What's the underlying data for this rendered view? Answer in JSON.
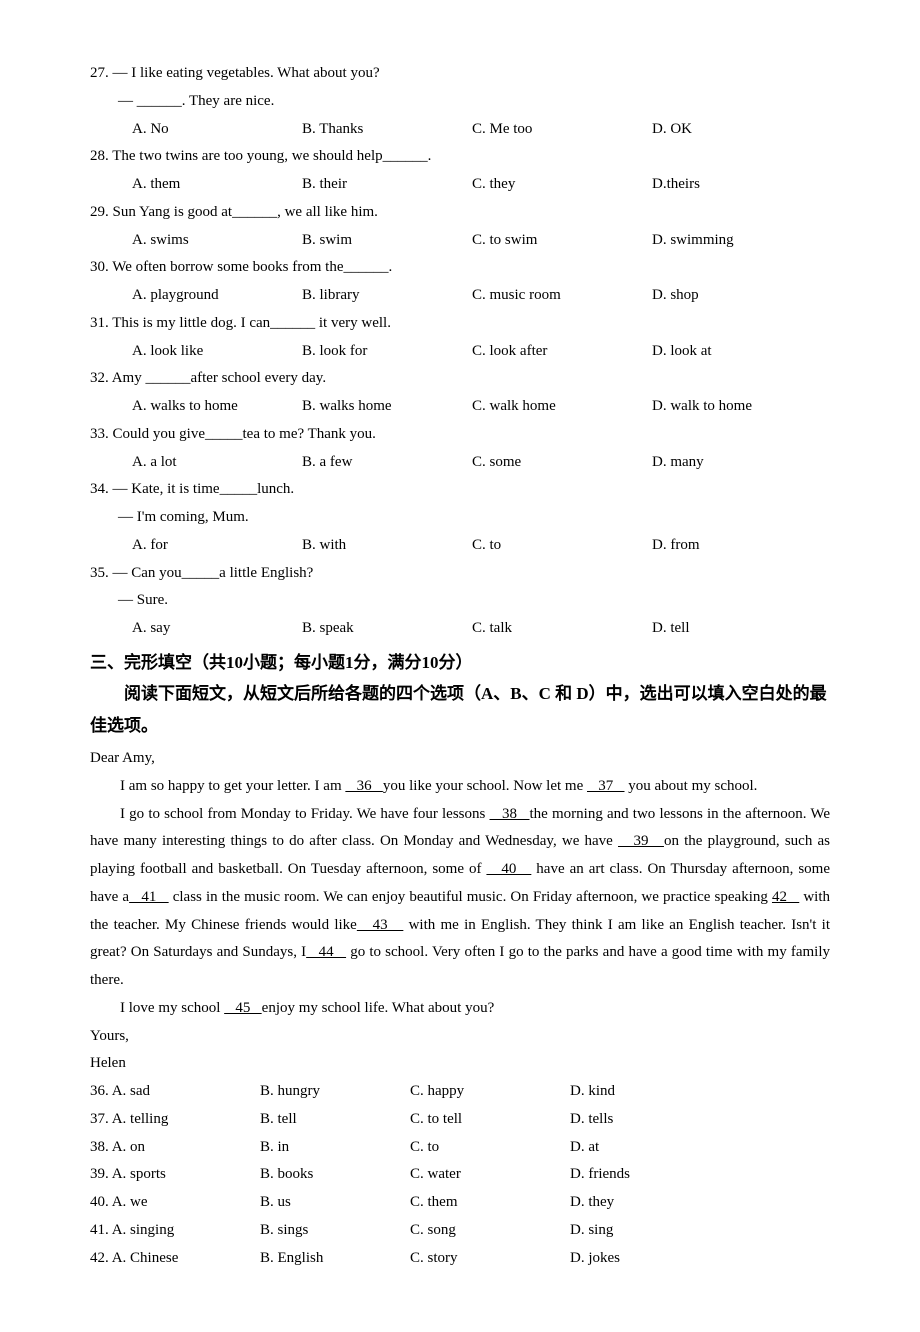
{
  "mcq": [
    {
      "num": "27.",
      "stem": "— I like eating vegetables. What about you?",
      "sub": "— ______. They are nice.",
      "a": "A. No",
      "b": "B. Thanks",
      "c": "C. Me too",
      "d": "D. OK"
    },
    {
      "num": "28.",
      "stem": "The two twins are too young, we should help______.",
      "a": "A. them",
      "b": "B. their",
      "c": "C. they",
      "d": "D.theirs"
    },
    {
      "num": "29.",
      "stem": "Sun Yang is good at______, we all like him.",
      "a": "A. swims",
      "b": "B. swim",
      "c": "C. to swim",
      "d": "D. swimming"
    },
    {
      "num": "30.",
      "stem": "We often borrow some books from the______.",
      "a": "A. playground",
      "b": "B. library",
      "c": "C. music room",
      "d": "D. shop"
    },
    {
      "num": "31.",
      "stem": "This is my little dog. I can______ it very well.",
      "a": "A. look like",
      "b": "B. look for",
      "c": "C. look after",
      "d": "D. look at"
    },
    {
      "num": "32.",
      "stem": "Amy ______after school every day.",
      "a": "A. walks to home",
      "b": "B. walks home",
      "c": "C. walk home",
      "d": "D. walk to home"
    },
    {
      "num": "33.",
      "stem": "Could you give_____tea to me? Thank you.",
      "a": "A. a lot",
      "b": "B. a few",
      "c": "C. some",
      "d": "D. many"
    },
    {
      "num": "34.",
      "stem": "— Kate, it is time_____lunch.",
      "sub": "— I'm coming, Mum.",
      "a": "A. for",
      "b": "B. with",
      "c": "C. to",
      "d": "D. from"
    },
    {
      "num": "35.",
      "stem": "— Can you_____a little English?",
      "sub": "— Sure.",
      "a": "A. say",
      "b": "B. speak",
      "c": "C. talk",
      "d": "D. tell"
    }
  ],
  "section": {
    "title": "三、完形填空（共10小题；每小题1分，满分10分）",
    "sub": "　　阅读下面短文，从短文后所给各题的四个选项（A、B、C 和 D）中，选出可以填入空白处的最佳选项。"
  },
  "passage": {
    "greeting": "Dear Amy,",
    "p1a": "I am so happy to get your letter. I am ",
    "b36": "   36   ",
    "p1b": "you like your school. Now let me ",
    "b37": "   37   ",
    "p1c": " you about my school.",
    "p2a": "I go to school from Monday to Friday. We have four lessons ",
    "b38": "   38   ",
    "p2b": "the morning and two lessons in the afternoon. We have many interesting things to do after class. On Monday and Wednesday, we have ",
    "b39": "   39   ",
    "p2c": "on the playground, such as playing football and basketball. On Tuesday afternoon, some of ",
    "b40": "   40   ",
    "p2d": " have an art class. On Thursday afternoon, some have a",
    "b41": "   41   ",
    "p2e": " class in the music room. We can enjoy beautiful music. On Friday afternoon, we practice speaking ",
    "b42": "42   ",
    "p2f": " with the teacher. My Chinese friends would like",
    "b43": "   43   ",
    "p2g": " with me in English. They think I am like an English teacher. Isn't it great? On Saturdays and Sundays, I",
    "b44": "   44   ",
    "p2h": " go to school. Very often I go to the parks and have a good time with my family there.",
    "p3a": "I love my school ",
    "b45": "   45   ",
    "p3b": "enjoy my school life. What about you?",
    "signoff1": "Yours,",
    "signoff2": "Helen"
  },
  "cloze": [
    {
      "n": "36.",
      "a": "A. sad",
      "b": "B. hungry",
      "c": "C. happy",
      "d": "D. kind"
    },
    {
      "n": "37.",
      "a": "A. telling",
      "b": "B. tell",
      "c": "C. to tell",
      "d": "D. tells"
    },
    {
      "n": "38.",
      "a": "A. on",
      "b": "B. in",
      "c": "C. to",
      "d": "D. at"
    },
    {
      "n": "39.",
      "a": "A. sports",
      "b": "B. books",
      "c": "C. water",
      "d": "D. friends"
    },
    {
      "n": "40.",
      "a": "A. we",
      "b": "B. us",
      "c": "C. them",
      "d": "D. they"
    },
    {
      "n": "41.",
      "a": "A. singing",
      "b": "B. sings",
      "c": "C. song",
      "d": "D. sing"
    },
    {
      "n": "42.",
      "a": "A. Chinese",
      "b": "B. English",
      "c": "C. story",
      "d": "D. jokes"
    }
  ]
}
